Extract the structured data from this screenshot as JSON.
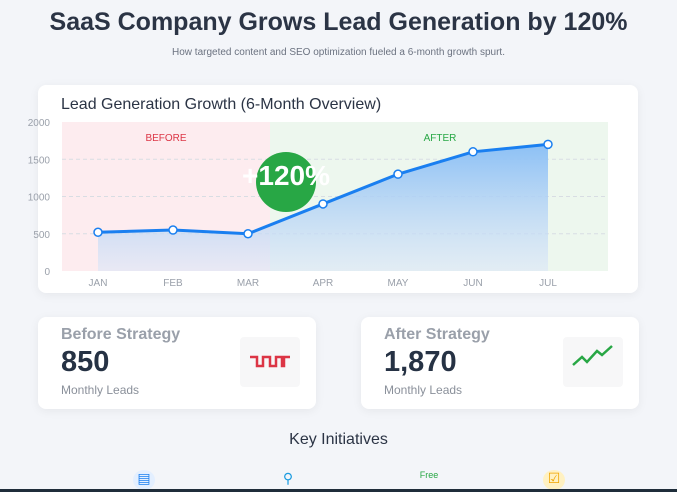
{
  "header": {
    "title": "SaaS Company Grows Lead Generation by 120%",
    "subtitle": "How targeted content and SEO optimization fueled a 6-month growth spurt."
  },
  "chart_data": {
    "type": "area",
    "title": "Lead Generation Growth (6-Month Overview)",
    "categories": [
      "JAN",
      "FEB",
      "MAR",
      "APR",
      "MAY",
      "JUN",
      "JUL"
    ],
    "values": [
      520,
      550,
      500,
      900,
      1300,
      1600,
      1700
    ],
    "ylim": [
      0,
      2000
    ],
    "yticks": [
      0,
      500,
      1000,
      1500,
      2000
    ],
    "regions": [
      {
        "label": "BEFORE",
        "color": "#dc3545"
      },
      {
        "label": "AFTER",
        "color": "#28a745"
      }
    ],
    "badge": "+120%",
    "line_color": "#1a7ff0",
    "grid": true
  },
  "stats": [
    {
      "label": "Before Strategy",
      "value": "850",
      "sub": "Monthly Leads",
      "icon": "flat-wave-icon",
      "color": "#dc3545"
    },
    {
      "label": "After Strategy",
      "value": "1,870",
      "sub": "Monthly Leads",
      "icon": "trend-up-icon",
      "color": "#28a745"
    }
  ],
  "initiatives": {
    "title": "Key Initiatives",
    "icons": [
      "document-icon",
      "search-icon",
      "free-badge-icon",
      "checkbox-icon"
    ],
    "free_label": "Free"
  }
}
